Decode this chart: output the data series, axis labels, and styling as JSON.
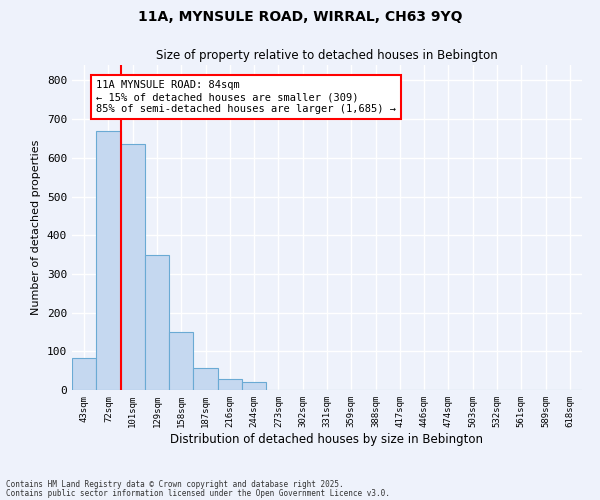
{
  "title1": "11A, MYNSULE ROAD, WIRRAL, CH63 9YQ",
  "title2": "Size of property relative to detached houses in Bebington",
  "xlabel": "Distribution of detached houses by size in Bebington",
  "ylabel": "Number of detached properties",
  "bar_labels": [
    "43sqm",
    "72sqm",
    "101sqm",
    "129sqm",
    "158sqm",
    "187sqm",
    "216sqm",
    "244sqm",
    "273sqm",
    "302sqm",
    "331sqm",
    "359sqm",
    "388sqm",
    "417sqm",
    "446sqm",
    "474sqm",
    "503sqm",
    "532sqm",
    "561sqm",
    "589sqm",
    "618sqm"
  ],
  "bar_values": [
    83,
    670,
    637,
    350,
    150,
    57,
    28,
    20,
    0,
    0,
    0,
    0,
    0,
    0,
    0,
    0,
    0,
    0,
    0,
    0,
    0
  ],
  "bar_color": "#c5d8f0",
  "bar_edge_color": "#6aaad4",
  "vline_x": 1.5,
  "vline_color": "red",
  "annotation_text": "11A MYNSULE ROAD: 84sqm\n← 15% of detached houses are smaller (309)\n85% of semi-detached houses are larger (1,685) →",
  "annotation_box_color": "white",
  "annotation_box_edgecolor": "red",
  "ylim": [
    0,
    840
  ],
  "yticks": [
    0,
    100,
    200,
    300,
    400,
    500,
    600,
    700,
    800
  ],
  "footer1": "Contains HM Land Registry data © Crown copyright and database right 2025.",
  "footer2": "Contains public sector information licensed under the Open Government Licence v3.0.",
  "bg_color": "#eef2fb",
  "grid_color": "white"
}
